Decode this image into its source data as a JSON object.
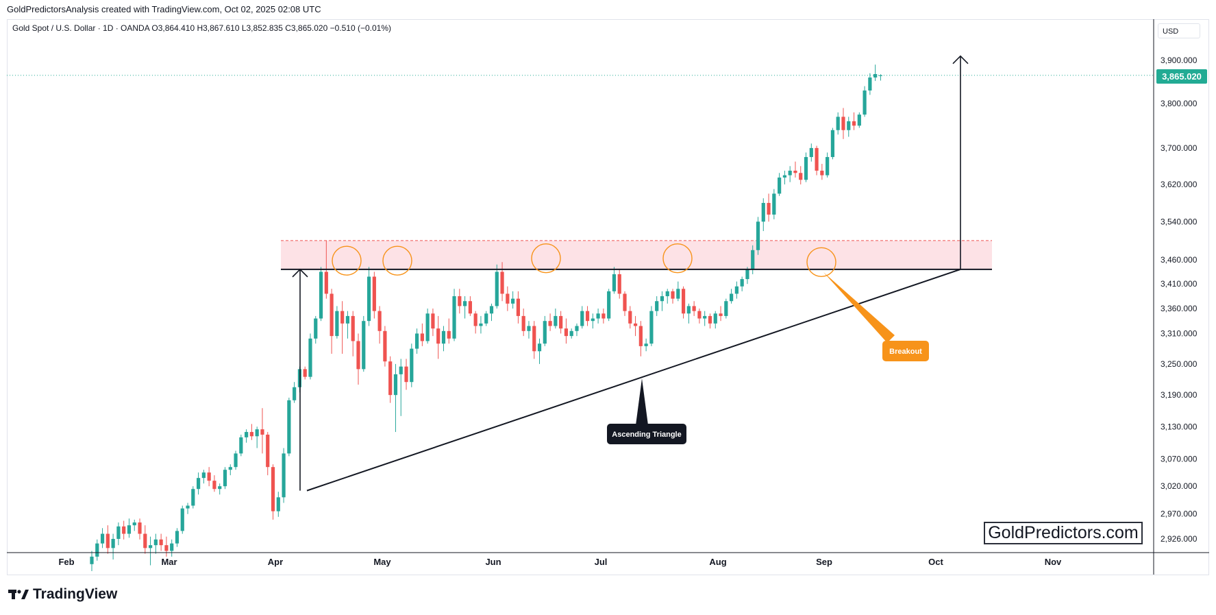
{
  "header": {
    "credit": "GoldPredictorsAnalysis created with TradingView.com, Oct 02, 2025 02:08 UTC",
    "symbol_line": "Gold Spot / U.S. Dollar · 1D · OANDA  O3,864.410  H3,867.610  L3,852.835  C3,865.020  −0.510 (−0.01%)"
  },
  "currency": "USD",
  "current_price": "3,865.020",
  "watermark": "GoldPredictors.com",
  "footer": {
    "brand": "TradingView"
  },
  "colors": {
    "up": "#26a69a",
    "down": "#ef5350",
    "zone": "#fde2e6",
    "orange": "#f7931a",
    "line": "#131722"
  },
  "icons": [
    "tradingview-logo-icon"
  ],
  "chart_data": {
    "type": "candlestick",
    "title": "",
    "x_axis": {
      "labels": [
        "Feb",
        "Mar",
        "Apr",
        "May",
        "Jun",
        "Jul",
        "Aug",
        "Sep",
        "Oct",
        "Nov"
      ]
    },
    "y_axis": {
      "scale": "log",
      "ticks": [
        "3,900.000",
        "3,800.000",
        "3,700.000",
        "3,620.000",
        "3,540.000",
        "3,460.000",
        "3,410.000",
        "3,360.000",
        "3,310.000",
        "3,250.000",
        "3,190.000",
        "3,130.000",
        "3,070.000",
        "3,020.000",
        "2,970.000",
        "2,926.000"
      ],
      "range": [
        2905,
        3940
      ]
    },
    "candles": [
      [
        2882,
        2905,
        2870,
        2895
      ],
      [
        2895,
        2925,
        2888,
        2918
      ],
      [
        2918,
        2945,
        2910,
        2935
      ],
      [
        2935,
        2950,
        2900,
        2910
      ],
      [
        2910,
        2935,
        2890,
        2926
      ],
      [
        2926,
        2955,
        2915,
        2948
      ],
      [
        2948,
        2958,
        2925,
        2935
      ],
      [
        2935,
        2962,
        2928,
        2950
      ],
      [
        2950,
        2960,
        2940,
        2955
      ],
      [
        2955,
        2962,
        2925,
        2935
      ],
      [
        2935,
        2950,
        2900,
        2910
      ],
      [
        2910,
        2930,
        2880,
        2915
      ],
      [
        2915,
        2935,
        2900,
        2925
      ],
      [
        2925,
        2935,
        2905,
        2915
      ],
      [
        2915,
        2930,
        2895,
        2905
      ],
      [
        2905,
        2925,
        2895,
        2918
      ],
      [
        2918,
        2945,
        2912,
        2940
      ],
      [
        2940,
        2985,
        2935,
        2980
      ],
      [
        2980,
        2990,
        2970,
        2985
      ],
      [
        2985,
        3020,
        2980,
        3015
      ],
      [
        3015,
        3045,
        3005,
        3035
      ],
      [
        3035,
        3050,
        3025,
        3045
      ],
      [
        3045,
        3055,
        3020,
        3030
      ],
      [
        3030,
        3040,
        3010,
        3015
      ],
      [
        3015,
        3025,
        3005,
        3020
      ],
      [
        3020,
        3055,
        3015,
        3050
      ],
      [
        3050,
        3060,
        3040,
        3055
      ],
      [
        3055,
        3085,
        3050,
        3080
      ],
      [
        3080,
        3115,
        3075,
        3110
      ],
      [
        3110,
        3125,
        3100,
        3120
      ],
      [
        3120,
        3135,
        3105,
        3112
      ],
      [
        3112,
        3130,
        3090,
        3125
      ],
      [
        3125,
        3165,
        3080,
        3115
      ],
      [
        3115,
        3120,
        3040,
        3055
      ],
      [
        3055,
        3060,
        2960,
        2975
      ],
      [
        2975,
        3010,
        2965,
        3000
      ],
      [
        3000,
        3090,
        2990,
        3080
      ],
      [
        3080,
        3185,
        3075,
        3180
      ],
      [
        3180,
        3215,
        3175,
        3205
      ],
      [
        3205,
        3245,
        3195,
        3240
      ],
      [
        3240,
        3245,
        3220,
        3225
      ],
      [
        3225,
        3310,
        3220,
        3300
      ],
      [
        3300,
        3345,
        3290,
        3340
      ],
      [
        3340,
        3445,
        3335,
        3435
      ],
      [
        3435,
        3500,
        3380,
        3390
      ],
      [
        3390,
        3400,
        3270,
        3305
      ],
      [
        3305,
        3365,
        3300,
        3355
      ],
      [
        3355,
        3375,
        3270,
        3330
      ],
      [
        3330,
        3355,
        3300,
        3345
      ],
      [
        3345,
        3355,
        3265,
        3295
      ],
      [
        3295,
        3310,
        3210,
        3240
      ],
      [
        3240,
        3345,
        3235,
        3335
      ],
      [
        3335,
        3445,
        3325,
        3425
      ],
      [
        3425,
        3435,
        3340,
        3355
      ],
      [
        3355,
        3365,
        3290,
        3315
      ],
      [
        3315,
        3325,
        3245,
        3255
      ],
      [
        3255,
        3265,
        3175,
        3190
      ],
      [
        3190,
        3250,
        3120,
        3230
      ],
      [
        3230,
        3260,
        3150,
        3245
      ],
      [
        3245,
        3260,
        3200,
        3215
      ],
      [
        3215,
        3290,
        3205,
        3280
      ],
      [
        3280,
        3320,
        3270,
        3310
      ],
      [
        3310,
        3330,
        3285,
        3295
      ],
      [
        3295,
        3360,
        3290,
        3350
      ],
      [
        3350,
        3360,
        3305,
        3320
      ],
      [
        3320,
        3345,
        3260,
        3290
      ],
      [
        3290,
        3325,
        3275,
        3315
      ],
      [
        3315,
        3340,
        3290,
        3300
      ],
      [
        3300,
        3400,
        3295,
        3385
      ],
      [
        3385,
        3400,
        3350,
        3365
      ],
      [
        3365,
        3385,
        3340,
        3375
      ],
      [
        3375,
        3385,
        3345,
        3350
      ],
      [
        3350,
        3355,
        3310,
        3325
      ],
      [
        3325,
        3345,
        3310,
        3330
      ],
      [
        3330,
        3355,
        3325,
        3350
      ],
      [
        3350,
        3370,
        3335,
        3365
      ],
      [
        3365,
        3450,
        3360,
        3435
      ],
      [
        3435,
        3455,
        3375,
        3390
      ],
      [
        3390,
        3405,
        3355,
        3370
      ],
      [
        3370,
        3395,
        3360,
        3380
      ],
      [
        3380,
        3395,
        3330,
        3345
      ],
      [
        3345,
        3360,
        3305,
        3315
      ],
      [
        3315,
        3335,
        3300,
        3325
      ],
      [
        3325,
        3335,
        3260,
        3275
      ],
      [
        3275,
        3300,
        3250,
        3290
      ],
      [
        3290,
        3345,
        3285,
        3335
      ],
      [
        3335,
        3350,
        3315,
        3325
      ],
      [
        3325,
        3360,
        3320,
        3345
      ],
      [
        3345,
        3355,
        3310,
        3320
      ],
      [
        3320,
        3340,
        3290,
        3305
      ],
      [
        3305,
        3320,
        3300,
        3315
      ],
      [
        3315,
        3330,
        3305,
        3325
      ],
      [
        3325,
        3365,
        3320,
        3355
      ],
      [
        3355,
        3365,
        3325,
        3335
      ],
      [
        3335,
        3350,
        3320,
        3340
      ],
      [
        3340,
        3360,
        3330,
        3350
      ],
      [
        3350,
        3360,
        3330,
        3340
      ],
      [
        3340,
        3400,
        3335,
        3395
      ],
      [
        3395,
        3445,
        3390,
        3430
      ],
      [
        3430,
        3440,
        3380,
        3390
      ],
      [
        3390,
        3395,
        3345,
        3355
      ],
      [
        3355,
        3365,
        3320,
        3330
      ],
      [
        3330,
        3345,
        3305,
        3325
      ],
      [
        3325,
        3335,
        3265,
        3285
      ],
      [
        3285,
        3300,
        3275,
        3290
      ],
      [
        3290,
        3365,
        3285,
        3355
      ],
      [
        3355,
        3385,
        3345,
        3375
      ],
      [
        3375,
        3395,
        3355,
        3385
      ],
      [
        3385,
        3400,
        3370,
        3395
      ],
      [
        3395,
        3400,
        3370,
        3380
      ],
      [
        3380,
        3415,
        3375,
        3400
      ],
      [
        3400,
        3405,
        3340,
        3350
      ],
      [
        3350,
        3370,
        3330,
        3365
      ],
      [
        3365,
        3375,
        3345,
        3355
      ],
      [
        3355,
        3360,
        3330,
        3340
      ],
      [
        3340,
        3355,
        3325,
        3345
      ],
      [
        3345,
        3350,
        3320,
        3330
      ],
      [
        3330,
        3355,
        3320,
        3350
      ],
      [
        3350,
        3365,
        3335,
        3345
      ],
      [
        3345,
        3380,
        3340,
        3375
      ],
      [
        3375,
        3400,
        3370,
        3390
      ],
      [
        3390,
        3415,
        3380,
        3405
      ],
      [
        3405,
        3425,
        3395,
        3420
      ],
      [
        3420,
        3445,
        3410,
        3440
      ],
      [
        3440,
        3490,
        3430,
        3480
      ],
      [
        3480,
        3550,
        3470,
        3540
      ],
      [
        3540,
        3590,
        3520,
        3580
      ],
      [
        3580,
        3600,
        3540,
        3555
      ],
      [
        3555,
        3610,
        3545,
        3600
      ],
      [
        3600,
        3645,
        3595,
        3635
      ],
      [
        3635,
        3650,
        3620,
        3640
      ],
      [
        3640,
        3660,
        3625,
        3650
      ],
      [
        3650,
        3670,
        3635,
        3645
      ],
      [
        3645,
        3660,
        3620,
        3630
      ],
      [
        3630,
        3690,
        3625,
        3680
      ],
      [
        3680,
        3710,
        3670,
        3700
      ],
      [
        3700,
        3705,
        3640,
        3650
      ],
      [
        3650,
        3665,
        3630,
        3640
      ],
      [
        3640,
        3690,
        3635,
        3680
      ],
      [
        3680,
        3745,
        3675,
        3740
      ],
      [
        3740,
        3780,
        3730,
        3770
      ],
      [
        3770,
        3790,
        3720,
        3740
      ],
      [
        3740,
        3770,
        3725,
        3760
      ],
      [
        3760,
        3780,
        3740,
        3750
      ],
      [
        3750,
        3780,
        3745,
        3775
      ],
      [
        3775,
        3840,
        3770,
        3830
      ],
      [
        3830,
        3870,
        3820,
        3860
      ],
      [
        3860,
        3890,
        3852,
        3868
      ],
      [
        3864.41,
        3867.61,
        3852.835,
        3865.02
      ]
    ],
    "resistance_zone": {
      "low": 3440,
      "high": 3500
    },
    "resistance_level": 3440,
    "annotations": [
      "Ascending Triangle",
      "Breakout"
    ]
  }
}
